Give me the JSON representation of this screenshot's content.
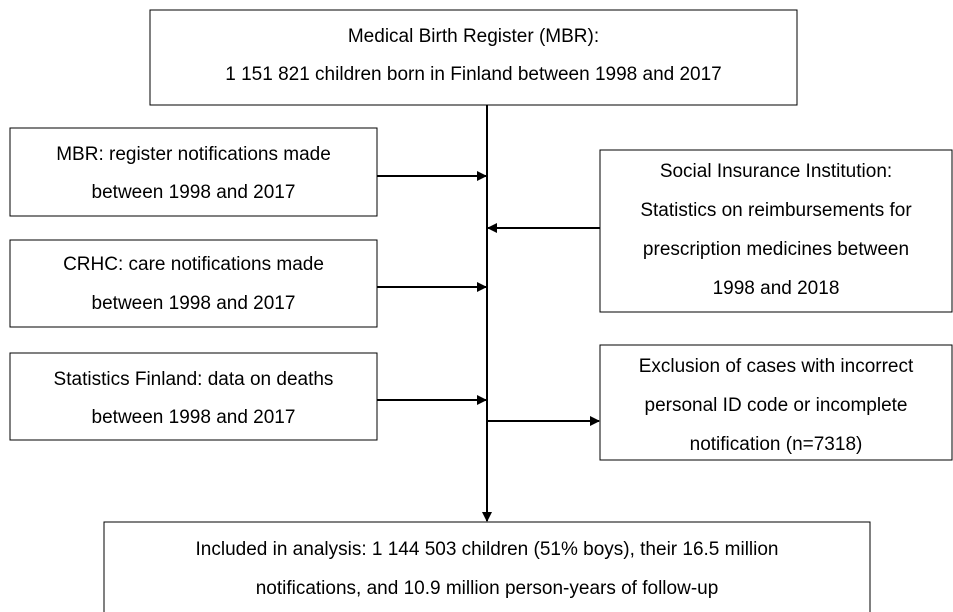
{
  "nodes": [
    {
      "lines": [
        "Medical Birth Register (MBR):",
        "1 151 821 children born in Finland between 1998 and 2017"
      ]
    },
    {
      "lines": [
        "MBR: register notifications made",
        "between 1998 and 2017"
      ]
    },
    {
      "lines": [
        "CRHC: care notifications made",
        "between 1998 and 2017"
      ]
    },
    {
      "lines": [
        "Statistics Finland: data on deaths",
        "between 1998 and 2017"
      ]
    },
    {
      "lines": [
        "Social Insurance Institution:",
        "Statistics on reimbursements for",
        "prescription medicines between",
        "1998 and 2018"
      ]
    },
    {
      "lines": [
        "Exclusion of cases with incorrect",
        "personal ID code or incomplete",
        "notification (n=7318)"
      ]
    },
    {
      "lines": [
        "Included in analysis: 1 144 503 children (51% boys), their 16.5 million",
        "notifications, and 10.9 million person-years of follow-up"
      ]
    }
  ]
}
